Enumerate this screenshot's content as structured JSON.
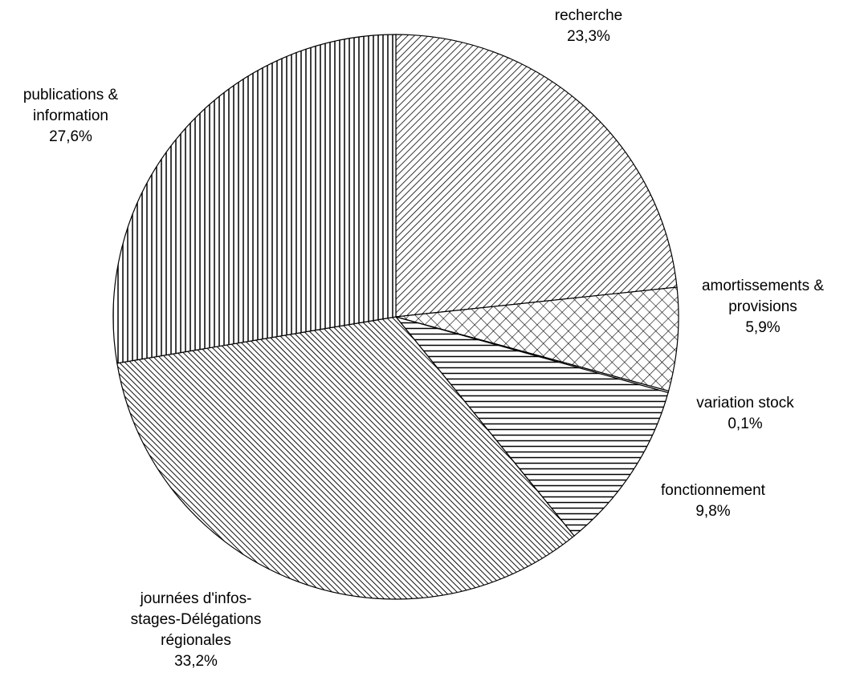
{
  "chart_data": {
    "type": "pie",
    "slices": [
      {
        "label": [
          "recherche"
        ],
        "value_label": "23,3%",
        "value": 23.3,
        "pattern": "diag-dense"
      },
      {
        "label": [
          "amortissements &",
          "provisions"
        ],
        "value_label": "5,9%",
        "value": 5.9,
        "pattern": "crosshatch"
      },
      {
        "label": [
          "variation stock"
        ],
        "value_label": "0,1%",
        "value": 0.1,
        "pattern": "solid-white"
      },
      {
        "label": [
          "fonctionnement"
        ],
        "value_label": "9,8%",
        "value": 9.8,
        "pattern": "horizontal"
      },
      {
        "label": [
          "journées d'infos-",
          "stages-Délégations",
          "régionales"
        ],
        "value_label": "33,2%",
        "value": 33.2,
        "pattern": "diag-dense-dark"
      },
      {
        "label": [
          "publications &",
          "information"
        ],
        "value_label": "27,6%",
        "value": 27.6,
        "pattern": "vertical"
      }
    ],
    "colors": {
      "stroke": "#000000",
      "background": "#ffffff"
    },
    "legend": "none"
  }
}
